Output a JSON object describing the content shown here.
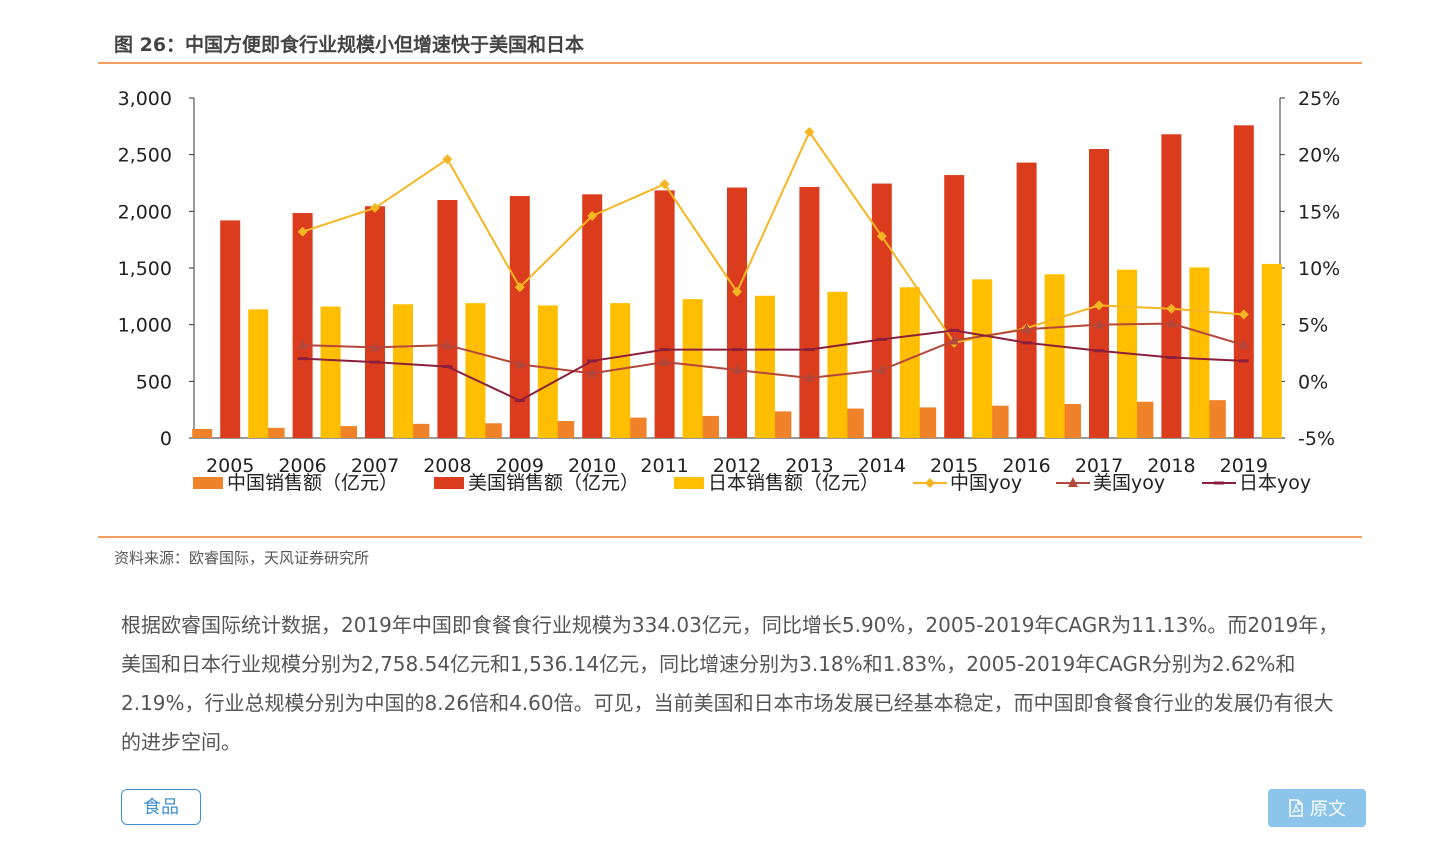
{
  "figure": {
    "title": "图 26：中国方便即食行业规模小但增速快于美国和日本"
  },
  "source": "资料来源：欧睿国际，天风证券研究所",
  "paragraph": "根据欧睿国际统计数据，2019年中国即食餐食行业规模为334.03亿元，同比增长5.90%，2005-2019年CAGR为11.13%。而2019年，美国和日本行业规模分别为2,758.54亿元和1,536.14亿元，同比增速分别为3.18%和1.83%，2005-2019年CAGR分别为2.62%和2.19%，行业总规模分别为中国的8.26倍和4.60倍。可见，当前美国和日本市场发展已经基本稳定，而中国即食餐食行业的发展仍有很大的进步空间。",
  "buttons": {
    "tag": "食品",
    "original": "原文"
  },
  "colors": {
    "china_bar": "#f0822a",
    "us_bar": "#dc3c1e",
    "japan_bar": "#ffbf00",
    "china_line": "#f5b623",
    "us_line": "#b5463a",
    "japan_line": "#8b1f3c"
  },
  "chart_data": {
    "type": "bar",
    "title": "图 26：中国方便即食行业规模小但增速快于美国和日本",
    "categories": [
      "2005",
      "2006",
      "2007",
      "2008",
      "2009",
      "2010",
      "2011",
      "2012",
      "2013",
      "2014",
      "2015",
      "2016",
      "2017",
      "2018",
      "2019"
    ],
    "y_left": {
      "range": [
        0,
        3000
      ],
      "ticks": [
        0,
        500,
        1000,
        1500,
        2000,
        2500,
        3000
      ],
      "tick_labels": [
        "0",
        "500",
        "1,000",
        "1,500",
        "2,000",
        "2,500",
        "3,000"
      ]
    },
    "y_right": {
      "range": [
        -5,
        25
      ],
      "ticks": [
        -5,
        0,
        5,
        10,
        15,
        20,
        25
      ],
      "tick_labels": [
        "-5%",
        "0%",
        "5%",
        "10%",
        "15%",
        "20%",
        "25%"
      ]
    },
    "bar_series": [
      {
        "name": "中国销售额（亿元）",
        "values": [
          80,
          90,
          105,
          125,
          130,
          150,
          180,
          195,
          235,
          260,
          270,
          285,
          300,
          320,
          334
        ]
      },
      {
        "name": "美国销售额（亿元）",
        "values": [
          1920,
          1985,
          2045,
          2100,
          2135,
          2150,
          2185,
          2210,
          2215,
          2245,
          2320,
          2430,
          2550,
          2680,
          2759
        ]
      },
      {
        "name": "日本销售额（亿元）",
        "values": [
          1135,
          1160,
          1180,
          1190,
          1170,
          1190,
          1225,
          1255,
          1290,
          1330,
          1400,
          1445,
          1485,
          1505,
          1536
        ]
      }
    ],
    "line_series": [
      {
        "name": "中国yoy",
        "axis": "right",
        "marker": "diamond",
        "values": [
          null,
          13.2,
          15.3,
          19.6,
          8.3,
          14.6,
          17.4,
          7.9,
          22.0,
          12.8,
          3.4,
          4.7,
          6.7,
          6.4,
          5.9
        ]
      },
      {
        "name": "美国yoy",
        "axis": "right",
        "marker": "triangle",
        "values": [
          null,
          3.2,
          3.0,
          3.2,
          1.5,
          0.7,
          1.7,
          1.0,
          0.3,
          1.0,
          3.6,
          4.6,
          5.0,
          5.1,
          3.2
        ]
      },
      {
        "name": "日本yoy",
        "axis": "right",
        "marker": "dash",
        "values": [
          null,
          2.0,
          1.7,
          1.3,
          -1.7,
          1.8,
          2.8,
          2.8,
          2.8,
          3.7,
          4.5,
          3.4,
          2.7,
          2.1,
          1.8
        ]
      }
    ],
    "legend_position": "bottom"
  }
}
